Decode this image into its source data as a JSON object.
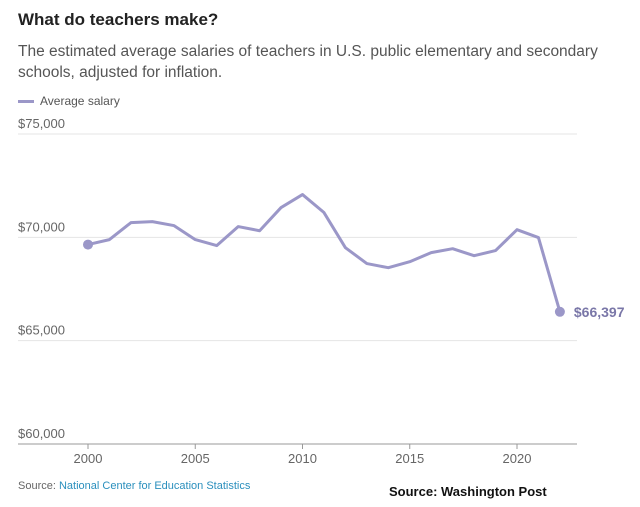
{
  "chart_data": {
    "type": "line",
    "title": "What do teachers make?",
    "subtitle": "The estimated average salaries of teachers in U.S. public elementary and secondary schools, adjusted for inflation.",
    "legend": "top-left",
    "grid": true,
    "color": "#9b97c8",
    "x": [
      2000,
      2001,
      2002,
      2003,
      2004,
      2005,
      2006,
      2007,
      2008,
      2009,
      2010,
      2011,
      2012,
      2013,
      2014,
      2015,
      2016,
      2017,
      2018,
      2019,
      2020,
      2021,
      2022
    ],
    "series": [
      {
        "name": "Average salary",
        "values": [
          69650,
          69890,
          70710,
          70760,
          70570,
          69890,
          69600,
          70520,
          70320,
          71440,
          72070,
          71200,
          69500,
          68730,
          68530,
          68820,
          69260,
          69450,
          69110,
          69360,
          70370,
          69990,
          66397
        ]
      }
    ],
    "ylim": [
      60000,
      75000
    ],
    "yticks": [
      {
        "v": 60000,
        "label": "$60,000"
      },
      {
        "v": 65000,
        "label": "$65,000"
      },
      {
        "v": 70000,
        "label": "$70,000"
      },
      {
        "v": 75000,
        "label": "$75,000"
      }
    ],
    "xticks": [
      {
        "v": 2000,
        "label": "2000"
      },
      {
        "v": 2005,
        "label": "2005"
      },
      {
        "v": 2010,
        "label": "2010"
      },
      {
        "v": 2015,
        "label": "2015"
      },
      {
        "v": 2020,
        "label": "2020"
      }
    ],
    "end_label": "$66,397"
  },
  "source": {
    "prefix": "Source: ",
    "link": "National Center for Education Statistics"
  },
  "credit": "Source:  Washington Post"
}
